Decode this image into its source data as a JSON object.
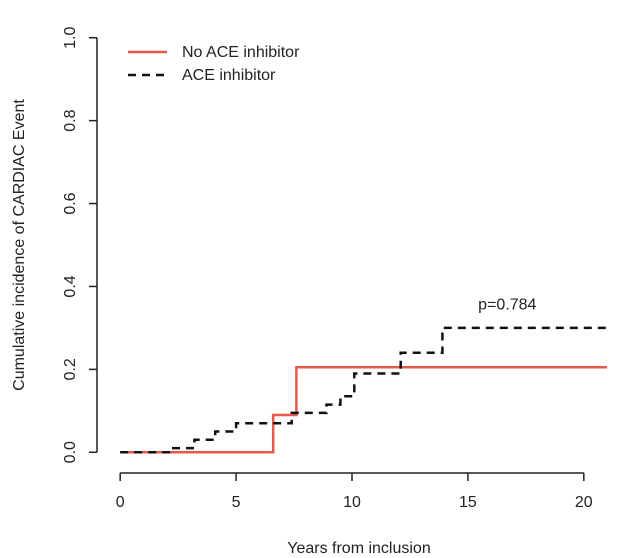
{
  "chart_data": {
    "type": "line",
    "title": "",
    "xlabel": "Years from inclusion",
    "ylabel": "Cumulative incidence of CARDIAC Event",
    "xlim": [
      -1,
      21
    ],
    "ylim": [
      -0.05,
      1.05
    ],
    "x_ticks": [
      "0",
      "5",
      "10",
      "15",
      "20"
    ],
    "y_ticks": [
      "0.0",
      "0.2",
      "0.4",
      "0.6",
      "0.8",
      "1.0"
    ],
    "grid": false,
    "legend_position": "top-left",
    "step": true,
    "series": [
      {
        "name": "No ACE inhibitor",
        "color": "#e8594a",
        "style": "solid",
        "x": [
          0,
          6.6,
          6.6,
          7.6,
          7.6,
          21
        ],
        "y": [
          0,
          0,
          0.09,
          0.09,
          0.205,
          0.205
        ]
      },
      {
        "name": "ACE inhibitor",
        "color": "#111111",
        "style": "dashed",
        "x": [
          0,
          2.1,
          2.1,
          3.2,
          3.2,
          4.1,
          4.1,
          5.0,
          5.0,
          7.4,
          7.4,
          8.9,
          8.9,
          9.5,
          9.5,
          10.1,
          10.1,
          12.1,
          12.1,
          13.9,
          13.9,
          21
        ],
        "y": [
          0,
          0,
          0.01,
          0.01,
          0.03,
          0.03,
          0.05,
          0.05,
          0.07,
          0.07,
          0.095,
          0.095,
          0.115,
          0.115,
          0.135,
          0.135,
          0.19,
          0.19,
          0.24,
          0.24,
          0.3,
          0.3
        ]
      }
    ],
    "annotations": [
      {
        "text": "p=0.784",
        "x": 16.7,
        "y": 0.345
      }
    ]
  }
}
